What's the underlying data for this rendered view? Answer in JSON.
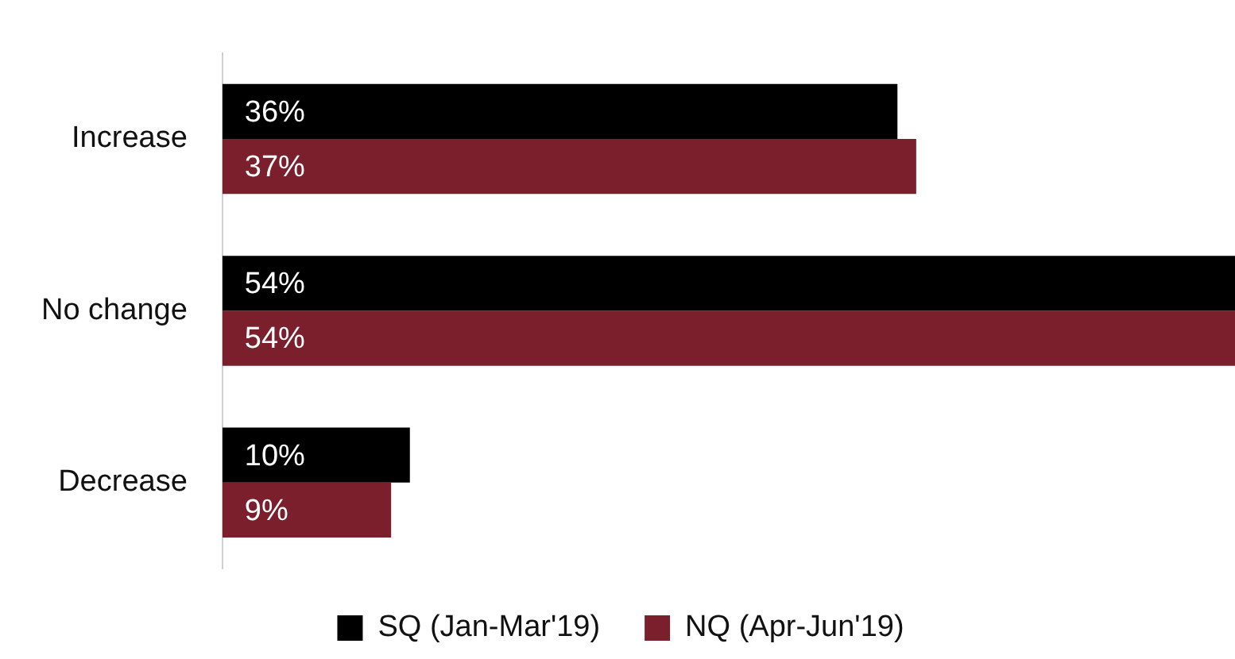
{
  "chart_data": {
    "type": "bar",
    "orientation": "horizontal",
    "categories": [
      "Increase",
      "No change",
      "Decrease"
    ],
    "series": [
      {
        "name": "SQ (Jan-Mar'19)",
        "color": "#000000",
        "values": [
          36,
          54,
          10
        ],
        "value_labels": [
          "36%",
          "54%",
          "10%"
        ]
      },
      {
        "name": "NQ (Apr-Jun'19)",
        "color": "#7b1f2d",
        "values": [
          37,
          54,
          9
        ],
        "value_labels": [
          "37%",
          "54%",
          "9%"
        ]
      }
    ],
    "legend": "bottom"
  }
}
